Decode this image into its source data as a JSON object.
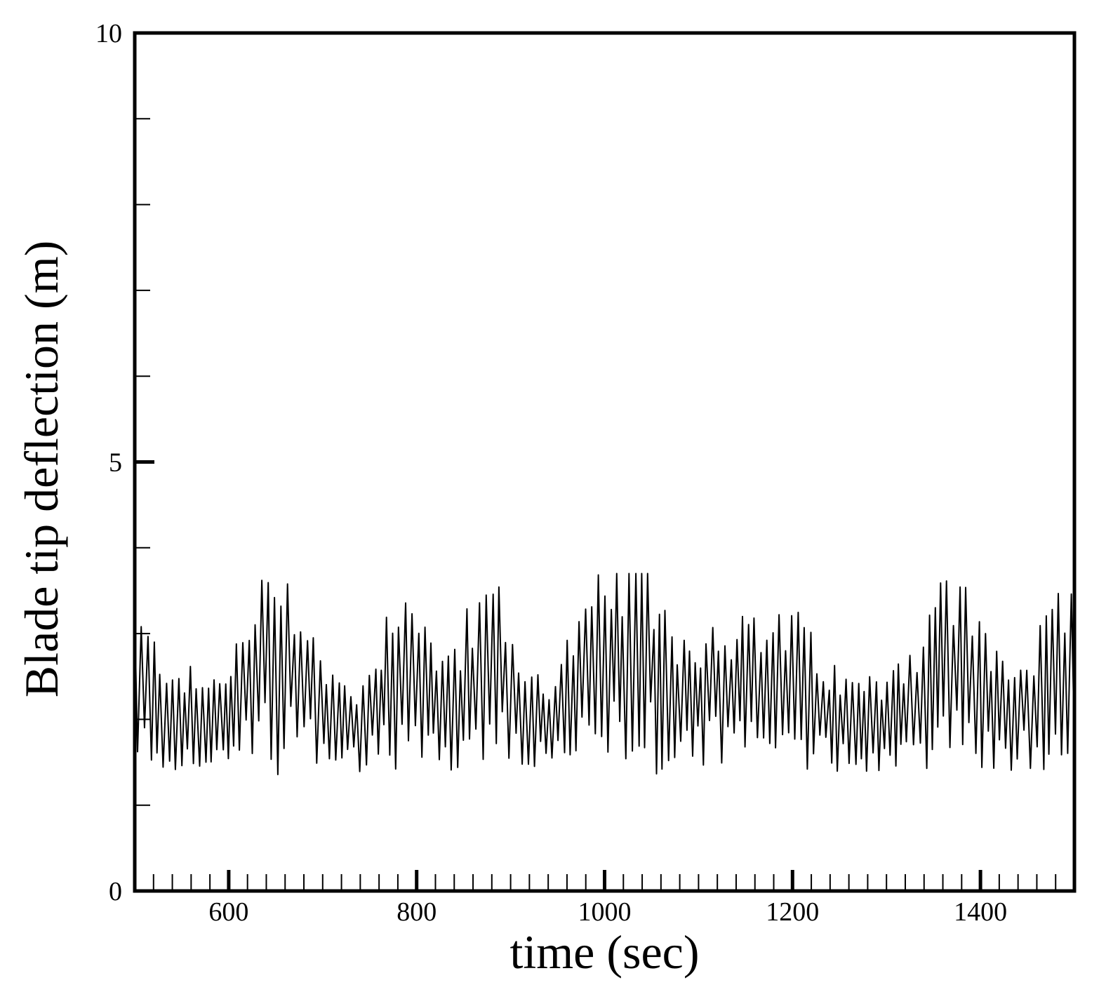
{
  "chart_data": {
    "type": "line",
    "title": "",
    "xlabel": "time (sec)",
    "ylabel": "Blade tip deflection (m)",
    "xlim": [
      500,
      1500
    ],
    "ylim": [
      0,
      10
    ],
    "x_major_ticks": [
      600,
      800,
      1000,
      1200,
      1400
    ],
    "x_minor_step": 20,
    "y_major_ticks": [
      0,
      5,
      10
    ],
    "y_minor_step": 1,
    "x_tick_labels": [
      "600",
      "800",
      "1000",
      "1200",
      "1400"
    ],
    "y_tick_labels": [
      "0",
      "5",
      "10"
    ],
    "grid": false,
    "legend": "none",
    "line_color": "#000000",
    "series": [
      {
        "x": [
          500,
          520,
          540,
          560,
          580,
          600,
          620,
          640,
          650,
          660,
          680,
          700,
          720,
          740,
          760,
          780,
          790,
          800,
          820,
          840,
          860,
          880,
          900,
          920,
          940,
          960,
          980,
          1000,
          1020,
          1035,
          1050,
          1070,
          1090,
          1110,
          1130,
          1150,
          1170,
          1190,
          1210,
          1230,
          1250,
          1270,
          1290,
          1310,
          1330,
          1350,
          1370,
          1390,
          1410,
          1430,
          1450,
          1470,
          1490,
          1500
        ],
        "y": [
          2.4,
          2.2,
          2.1,
          2.0,
          1.95,
          2.1,
          2.3,
          2.6,
          2.75,
          2.7,
          2.4,
          2.1,
          1.95,
          1.95,
          2.2,
          2.6,
          2.75,
          2.5,
          2.1,
          2.2,
          2.4,
          2.6,
          2.3,
          2.0,
          2.0,
          2.2,
          2.4,
          2.6,
          2.7,
          2.85,
          2.6,
          2.4,
          2.2,
          2.3,
          2.4,
          2.3,
          2.3,
          2.4,
          2.3,
          2.1,
          2.0,
          1.95,
          2.0,
          2.1,
          2.2,
          2.5,
          2.6,
          2.45,
          2.2,
          2.1,
          2.1,
          2.3,
          2.5,
          2.6
        ]
      }
    ],
    "oscillation": {
      "period_sec": 6.5,
      "typical_max": 3.2,
      "typical_min": 1.4,
      "peak_max": 3.7,
      "trough_min": 1.2
    }
  }
}
